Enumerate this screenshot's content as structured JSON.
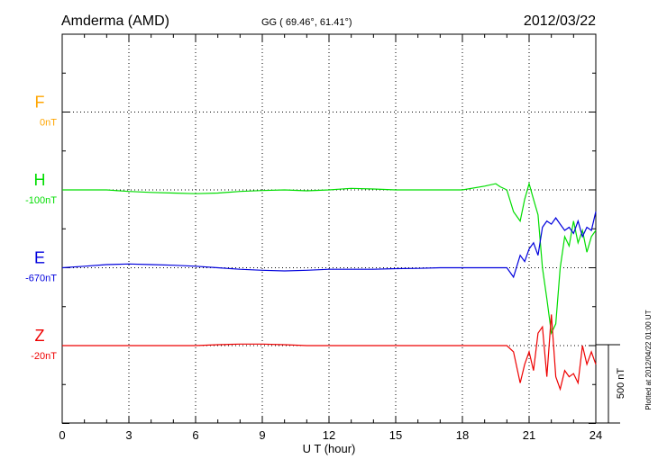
{
  "header": {
    "station": "Amderma (AMD)",
    "coords": "GG ( 69.46°,  61.41°)",
    "date": "2012/03/22"
  },
  "plotted_note": "Plotted at 2012/04/22 01:00 UT",
  "scale": {
    "value_nT": 500,
    "label": "500 nT"
  },
  "chart_data": {
    "type": "line",
    "xlabel": "U T (hour)",
    "xlim": [
      0,
      24
    ],
    "xticks": [
      0,
      3,
      6,
      9,
      12,
      15,
      18,
      21,
      24
    ],
    "xtick_labels": [
      "0",
      "3",
      "6",
      "9",
      "12",
      "15",
      "18",
      "21",
      "24"
    ],
    "grid": true,
    "units_per_division_nT": 250,
    "series": [
      {
        "name": "F",
        "base_label": "0nT",
        "color": "#ffa500",
        "offset_div": 1,
        "x": [],
        "y": []
      },
      {
        "name": "H",
        "base_label": "-100nT",
        "color": "#00dd00",
        "offset_div": 2,
        "x": [
          0,
          1,
          2,
          3,
          4,
          5,
          6,
          7,
          8,
          9,
          10,
          11,
          12,
          13,
          14,
          15,
          16,
          17,
          18,
          19,
          19.5,
          19.7,
          20,
          20.3,
          20.6,
          20.8,
          21.0,
          21.2,
          21.4,
          21.6,
          21.8,
          22.0,
          22.2,
          22.4,
          22.6,
          22.8,
          23.0,
          23.2,
          23.4,
          23.6,
          23.8,
          24
        ],
        "y": [
          0,
          0,
          0,
          -5,
          -8,
          -10,
          -12,
          -10,
          -5,
          -2,
          0,
          -3,
          0,
          5,
          3,
          0,
          0,
          0,
          0,
          12,
          20,
          10,
          0,
          -70,
          -100,
          -30,
          20,
          -30,
          -80,
          -250,
          -350,
          -460,
          -430,
          -250,
          -150,
          -180,
          -100,
          -170,
          -130,
          -200,
          -150,
          -130
        ]
      },
      {
        "name": "E",
        "base_label": "-670nT",
        "color": "#0000dd",
        "offset_div": 3,
        "x": [
          0,
          1,
          2,
          3,
          4,
          5,
          6,
          7,
          8,
          9,
          10,
          11,
          12,
          13,
          14,
          15,
          16,
          17,
          18,
          19,
          20,
          20.3,
          20.6,
          20.8,
          21.0,
          21.2,
          21.4,
          21.6,
          21.8,
          22.0,
          22.2,
          22.4,
          22.6,
          22.8,
          23.0,
          23.2,
          23.4,
          23.6,
          23.8,
          24
        ],
        "y": [
          0,
          5,
          10,
          12,
          10,
          8,
          5,
          0,
          -5,
          -8,
          -10,
          -8,
          -5,
          -5,
          -5,
          -3,
          -2,
          0,
          0,
          0,
          0,
          -30,
          40,
          20,
          60,
          80,
          40,
          130,
          150,
          140,
          160,
          140,
          120,
          130,
          110,
          150,
          100,
          130,
          120,
          180
        ]
      },
      {
        "name": "Z",
        "base_label": "-20nT",
        "color": "#ee0000",
        "offset_div": 4,
        "x": [
          0,
          1,
          2,
          3,
          4,
          5,
          6,
          7,
          8,
          9,
          10,
          11,
          12,
          13,
          14,
          15,
          16,
          17,
          18,
          19,
          20,
          20.3,
          20.6,
          20.8,
          21.0,
          21.2,
          21.4,
          21.6,
          21.8,
          22.0,
          22.2,
          22.4,
          22.6,
          22.8,
          23.0,
          23.2,
          23.4,
          23.6,
          23.8,
          24
        ],
        "y": [
          0,
          0,
          0,
          0,
          0,
          0,
          0,
          3,
          5,
          5,
          3,
          0,
          0,
          0,
          0,
          0,
          0,
          0,
          0,
          0,
          0,
          -20,
          -120,
          -60,
          -20,
          -80,
          40,
          60,
          -100,
          100,
          -100,
          -140,
          -80,
          -100,
          -90,
          -120,
          0,
          -60,
          -20,
          -60
        ]
      }
    ]
  }
}
